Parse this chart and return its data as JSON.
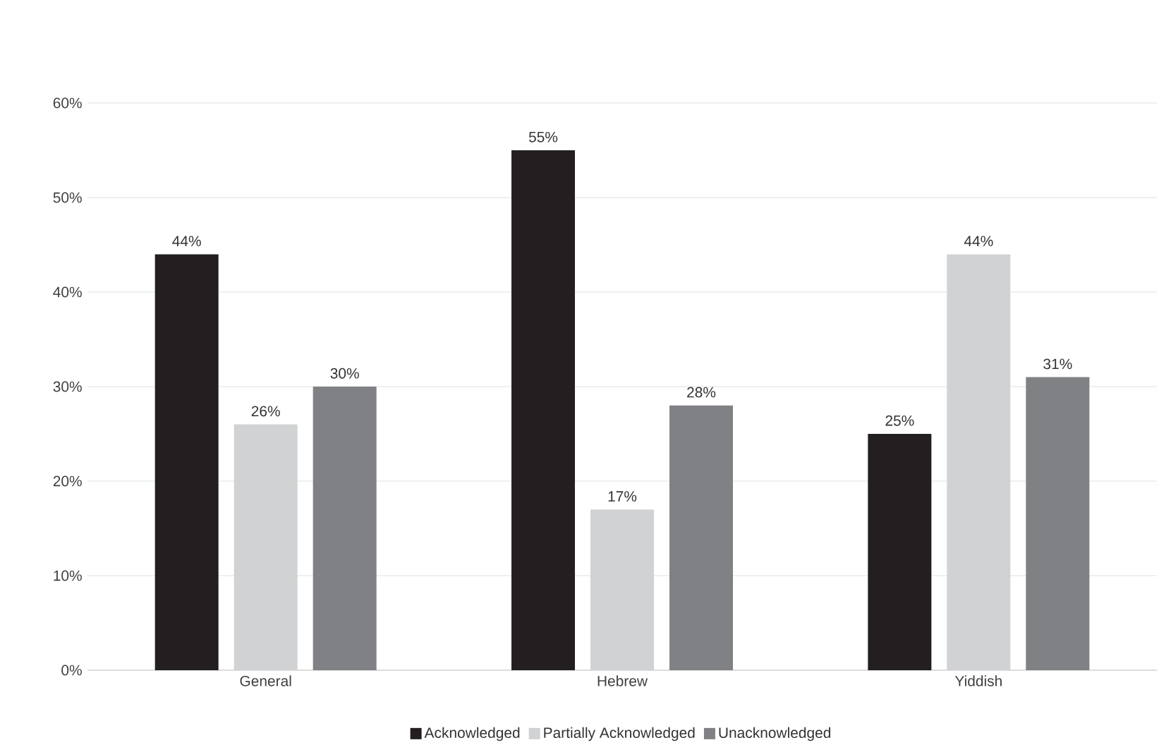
{
  "chart_data": {
    "type": "bar",
    "categories": [
      "General",
      "Hebrew",
      "Yiddish"
    ],
    "series": [
      {
        "name": "Acknowledged",
        "color": "#231f20",
        "values": [
          44,
          55,
          25
        ],
        "value_labels": [
          "44%",
          "55%",
          "25%"
        ]
      },
      {
        "name": "Partially Acknowledged",
        "color": "#d1d2d4",
        "values": [
          26,
          17,
          44
        ],
        "value_labels": [
          "26%",
          "17%",
          "44%"
        ]
      },
      {
        "name": "Unacknowledged",
        "color": "#808184",
        "values": [
          30,
          28,
          31
        ],
        "value_labels": [
          "30%",
          "28%",
          "31%"
        ]
      }
    ],
    "ylim": [
      0,
      60
    ],
    "yticks": [
      {
        "value": 0,
        "label": "0%"
      },
      {
        "value": 10,
        "label": "10%"
      },
      {
        "value": 20,
        "label": "20%"
      },
      {
        "value": 30,
        "label": "30%"
      },
      {
        "value": 40,
        "label": "40%"
      },
      {
        "value": 50,
        "label": "50%"
      },
      {
        "value": 60,
        "label": "60%"
      }
    ],
    "grid": "y",
    "legend": "bottom"
  }
}
